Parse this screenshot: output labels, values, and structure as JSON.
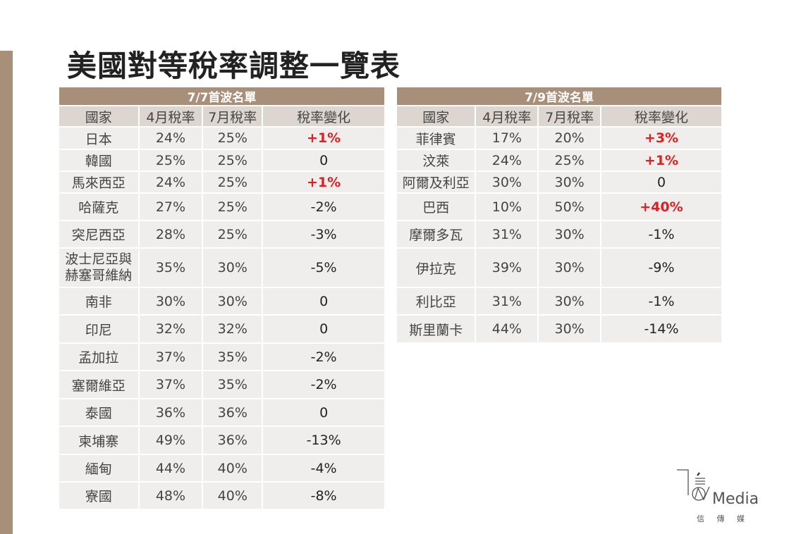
{
  "title": "美國對等稅率調整一覽表",
  "columns": [
    "國家",
    "4月稅率",
    "7月稅率",
    "稅率變化"
  ],
  "accent_color": "#a88f7a",
  "increase_color": "#e02020",
  "left": {
    "caption": "7/7首波名單",
    "rows": [
      [
        "日本",
        "24%",
        "25%",
        "+1%"
      ],
      [
        "韓國",
        "25%",
        "25%",
        "0"
      ],
      [
        "馬來西亞",
        "24%",
        "25%",
        "+1%"
      ],
      [
        "哈薩克",
        "27%",
        "25%",
        "-2%"
      ],
      [
        "突尼西亞",
        "28%",
        "25%",
        "-3%"
      ],
      [
        "波士尼亞與\n赫塞哥維納",
        "35%",
        "30%",
        "-5%"
      ],
      [
        "南非",
        "30%",
        "30%",
        "0"
      ],
      [
        "印尼",
        "32%",
        "32%",
        "0"
      ],
      [
        "孟加拉",
        "37%",
        "35%",
        "-2%"
      ],
      [
        "塞爾維亞",
        "37%",
        "35%",
        "-2%"
      ],
      [
        "泰國",
        "36%",
        "36%",
        "0"
      ],
      [
        "柬埔寨",
        "49%",
        "36%",
        "-13%"
      ],
      [
        "緬甸",
        "44%",
        "40%",
        "-4%"
      ],
      [
        "寮國",
        "48%",
        "40%",
        "-8%"
      ]
    ]
  },
  "right": {
    "caption": "7/9首波名單",
    "rows": [
      [
        "菲律賓",
        "17%",
        "20%",
        "+3%"
      ],
      [
        "汶萊",
        "24%",
        "25%",
        "+1%"
      ],
      [
        "阿爾及利亞",
        "30%",
        "30%",
        "0"
      ],
      [
        "巴西",
        "10%",
        "50%",
        "+40%"
      ],
      [
        "摩爾多瓦",
        "31%",
        "30%",
        "-1%"
      ],
      [
        "伊拉克",
        "39%",
        "30%",
        "-9%"
      ],
      [
        "利比亞",
        "31%",
        "30%",
        "-1%"
      ],
      [
        "斯里蘭卡",
        "44%",
        "30%",
        "-14%"
      ]
    ]
  },
  "logo": {
    "text": "Media",
    "sub": "信 傳 媒"
  }
}
